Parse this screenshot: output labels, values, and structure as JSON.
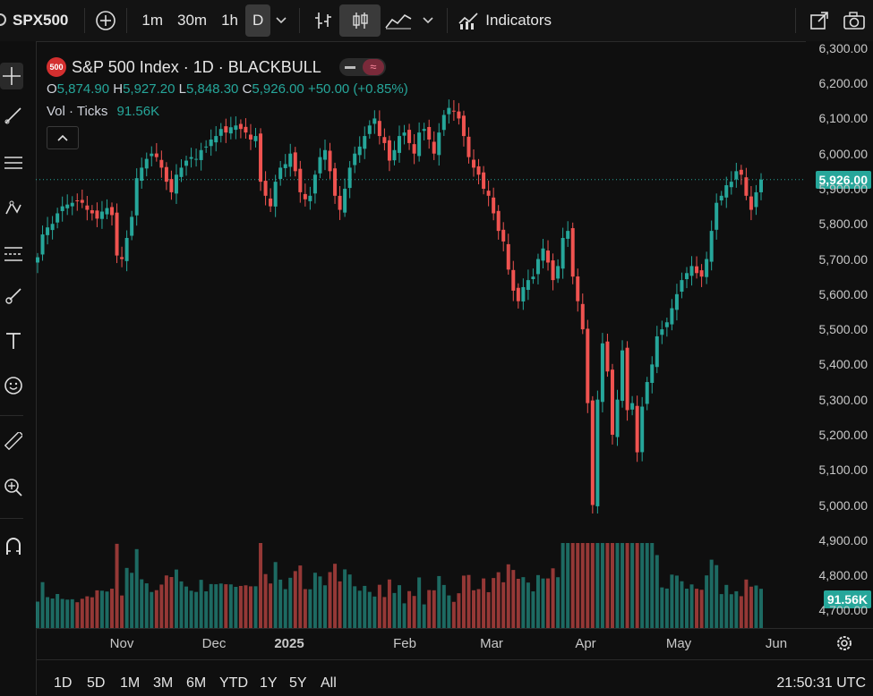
{
  "toolbar": {
    "symbol": "SPX500",
    "intervals": [
      "1m",
      "30m",
      "1h",
      "D"
    ],
    "active_interval": "D",
    "indicators_label": "Indicators"
  },
  "legend": {
    "title": "S&P 500 Index · 1D · BLACKBULL",
    "logo_text": "500",
    "o_label": "O",
    "o": "5,874.90",
    "h_label": "H",
    "h": "5,927.20",
    "l_label": "L",
    "l": "5,848.30",
    "c_label": "C",
    "c": "5,926.00",
    "change": "+50.00 (+0.85%)",
    "vol_label": "Vol · Ticks",
    "vol_value": "91.56K"
  },
  "price_axis": {
    "ticks": [
      "6,300.00",
      "6,200.00",
      "6,100.00",
      "6,000.00",
      "5,900.00",
      "5,800.00",
      "5,700.00",
      "5,600.00",
      "5,500.00",
      "5,400.00",
      "5,300.00",
      "5,200.00",
      "5,100.00",
      "5,000.00",
      "4,900.00",
      "4,800.00",
      "4,700.00"
    ],
    "last_price_badge": "5,926.00",
    "volume_badge": "91.56K"
  },
  "time_axis": [
    "Nov",
    "Dec",
    "2025",
    "Feb",
    "Mar",
    "Apr",
    "May",
    "Jun"
  ],
  "bottom": {
    "ranges": [
      "1D",
      "5D",
      "1M",
      "3M",
      "6M",
      "YTD",
      "1Y",
      "5Y",
      "All"
    ],
    "clock": "21:50:31 UTC"
  },
  "colors": {
    "up": "#26a69a",
    "down": "#ef5350",
    "badge": "#26a69a",
    "background": "#0f0f0f"
  },
  "chart_data": {
    "type": "candlestick",
    "title": "S&P 500 Index · 1D · BLACKBULL",
    "ylim": [
      4650,
      6320
    ],
    "y_ticks": [
      6300,
      6200,
      6100,
      6000,
      5900,
      5800,
      5700,
      5600,
      5500,
      5400,
      5300,
      5200,
      5100,
      5000,
      4900,
      4800,
      4700
    ],
    "x_labels": [
      "Nov",
      "Dec",
      "2025",
      "Feb",
      "Mar",
      "Apr",
      "May",
      "Jun"
    ],
    "last_close": 5926.0,
    "closes": [
      5705,
      5770,
      5790,
      5800,
      5830,
      5850,
      5855,
      5860,
      5865,
      5860,
      5840,
      5830,
      5815,
      5835,
      5845,
      5825,
      5710,
      5700,
      5760,
      5820,
      5930,
      5960,
      5985,
      6000,
      5990,
      5960,
      5920,
      5890,
      5940,
      5960,
      5980,
      5990,
      5985,
      6010,
      6020,
      6040,
      6050,
      6070,
      6060,
      6075,
      6080,
      6070,
      6060,
      6040,
      6050,
      5920,
      5880,
      5850,
      5920,
      5960,
      5970,
      6000,
      5950,
      5890,
      5870,
      5880,
      5940,
      5990,
      6010,
      5950,
      5880,
      5840,
      5900,
      5960,
      6000,
      6020,
      6050,
      6080,
      6100,
      6050,
      6030,
      5980,
      6010,
      6050,
      6060,
      6030,
      6000,
      6060,
      6070,
      6040,
      6000,
      6060,
      6110,
      6130,
      6120,
      6100,
      6050,
      5990,
      5960,
      5940,
      5900,
      5880,
      5830,
      5780,
      5750,
      5670,
      5610,
      5580,
      5620,
      5640,
      5650,
      5700,
      5730,
      5690,
      5640,
      5680,
      5760,
      5780,
      5650,
      5580,
      5500,
      5290,
      5000,
      5300,
      5460,
      5380,
      5200,
      5300,
      5440,
      5270,
      5290,
      5150,
      5280,
      5350,
      5400,
      5480,
      5500,
      5520,
      5560,
      5600,
      5640,
      5660,
      5680,
      5660,
      5650,
      5700,
      5780,
      5860,
      5880,
      5910,
      5920,
      5950,
      5940,
      5880,
      5840,
      5890,
      5926
    ]
  }
}
